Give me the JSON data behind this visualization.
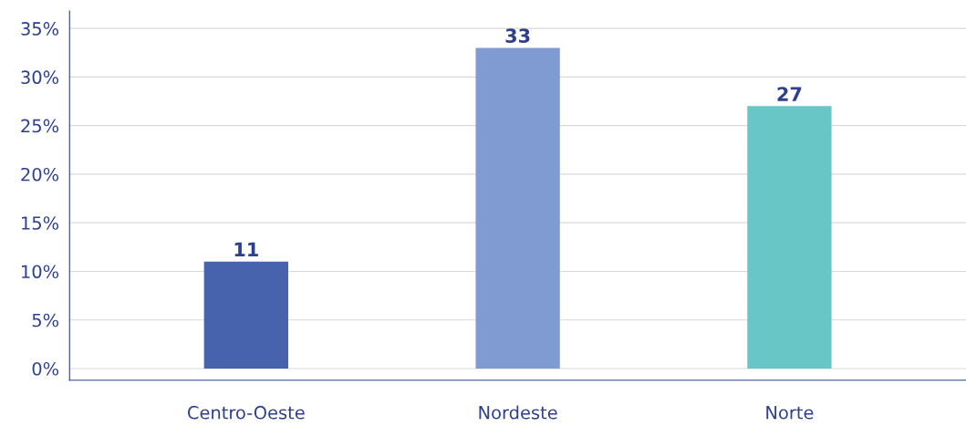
{
  "chart_data": {
    "type": "bar",
    "categories": [
      "Centro-Oeste",
      "Nordeste",
      "Norte"
    ],
    "values": [
      11,
      33,
      27
    ],
    "data_labels": true,
    "colors": [
      "#4763ad",
      "#7f9bd1",
      "#69c6c6"
    ],
    "ylim": [
      -1.2,
      36.8
    ],
    "yticks": [
      {
        "value": 0,
        "label": "0%"
      },
      {
        "value": 5,
        "label": "5%"
      },
      {
        "value": 10,
        "label": "10%"
      },
      {
        "value": 15,
        "label": "15%"
      },
      {
        "value": 20,
        "label": "20%"
      },
      {
        "value": 25,
        "label": "25%"
      },
      {
        "value": 30,
        "label": "30%"
      },
      {
        "value": 35,
        "label": "35%"
      }
    ],
    "grid": "y",
    "legend": false
  }
}
